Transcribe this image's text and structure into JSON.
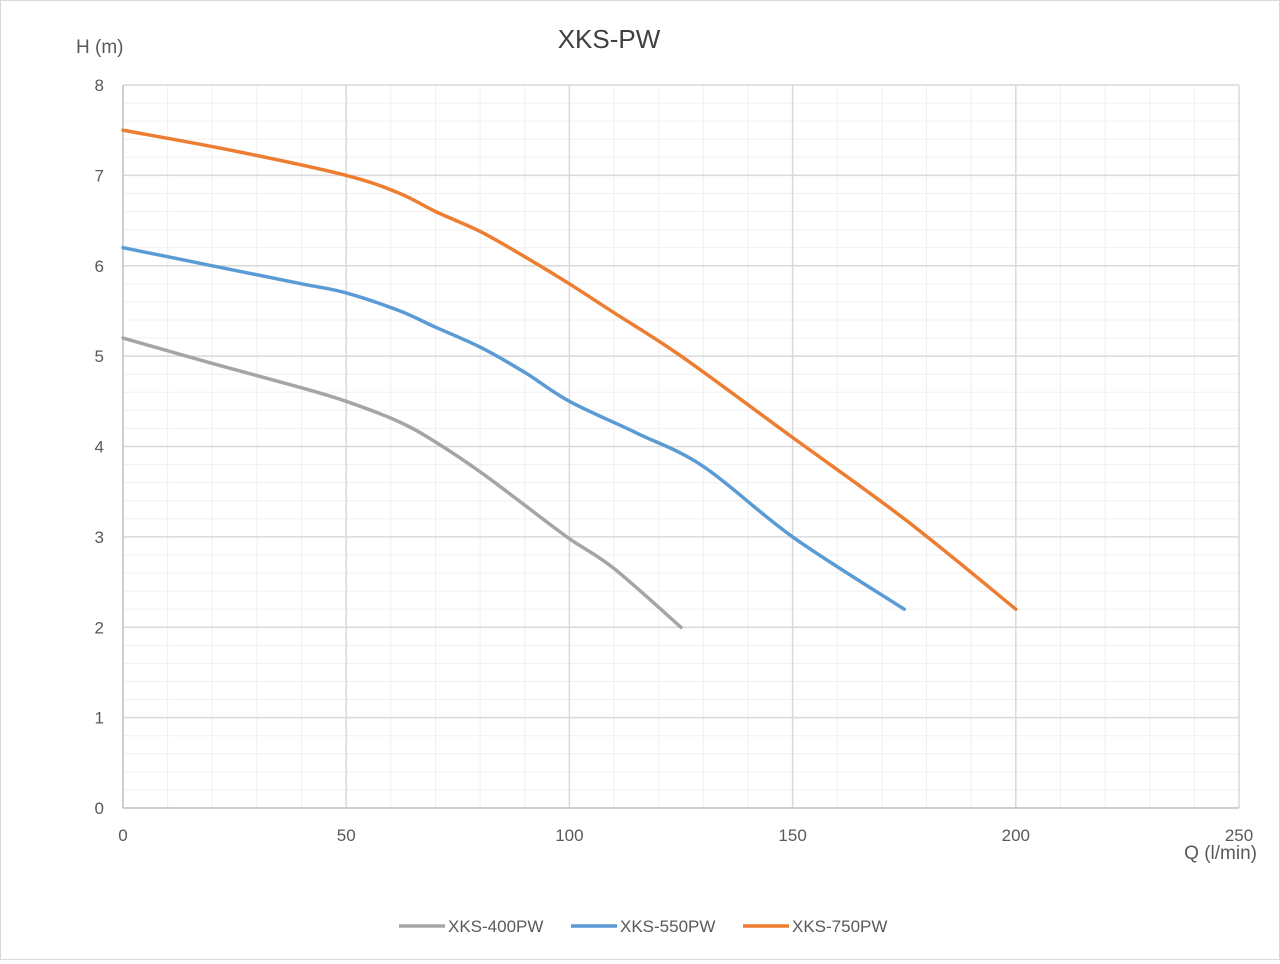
{
  "chart_data": {
    "type": "line",
    "title": "XKS-PW",
    "xlabel": "Q (l/min)",
    "ylabel": "H (m)",
    "xlim": [
      0,
      250
    ],
    "ylim": [
      0,
      8
    ],
    "x_ticks": [
      "0",
      "50",
      "100",
      "150",
      "200",
      "250"
    ],
    "y_ticks": [
      "0",
      "1",
      "2",
      "3",
      "4",
      "5",
      "6",
      "7",
      "8"
    ],
    "grid": true,
    "legend_position": "bottom",
    "series": [
      {
        "name": "XKS-400PW",
        "color": "#a5a5a5",
        "points": [
          [
            0,
            5.2
          ],
          [
            20,
            4.92
          ],
          [
            40,
            4.65
          ],
          [
            50,
            4.5
          ],
          [
            62,
            4.27
          ],
          [
            70,
            4.05
          ],
          [
            80,
            3.72
          ],
          [
            90,
            3.35
          ],
          [
            100,
            2.98
          ],
          [
            110,
            2.65
          ],
          [
            125,
            2.0
          ]
        ]
      },
      {
        "name": "XKS-550PW",
        "color": "#5b9bd5",
        "points": [
          [
            0,
            6.2
          ],
          [
            20,
            6.0
          ],
          [
            40,
            5.8
          ],
          [
            50,
            5.7
          ],
          [
            62,
            5.5
          ],
          [
            70,
            5.32
          ],
          [
            80,
            5.1
          ],
          [
            90,
            4.82
          ],
          [
            100,
            4.5
          ],
          [
            115,
            4.15
          ],
          [
            130,
            3.78
          ],
          [
            150,
            3.0
          ],
          [
            175,
            2.2
          ]
        ]
      },
      {
        "name": "XKS-750PW",
        "color": "#ed7d31",
        "points": [
          [
            0,
            7.5
          ],
          [
            25,
            7.27
          ],
          [
            50,
            7.0
          ],
          [
            62,
            6.8
          ],
          [
            70,
            6.6
          ],
          [
            80,
            6.38
          ],
          [
            90,
            6.1
          ],
          [
            100,
            5.8
          ],
          [
            110,
            5.48
          ],
          [
            125,
            5.0
          ],
          [
            150,
            4.1
          ],
          [
            175,
            3.2
          ],
          [
            200,
            2.2
          ]
        ]
      }
    ]
  }
}
